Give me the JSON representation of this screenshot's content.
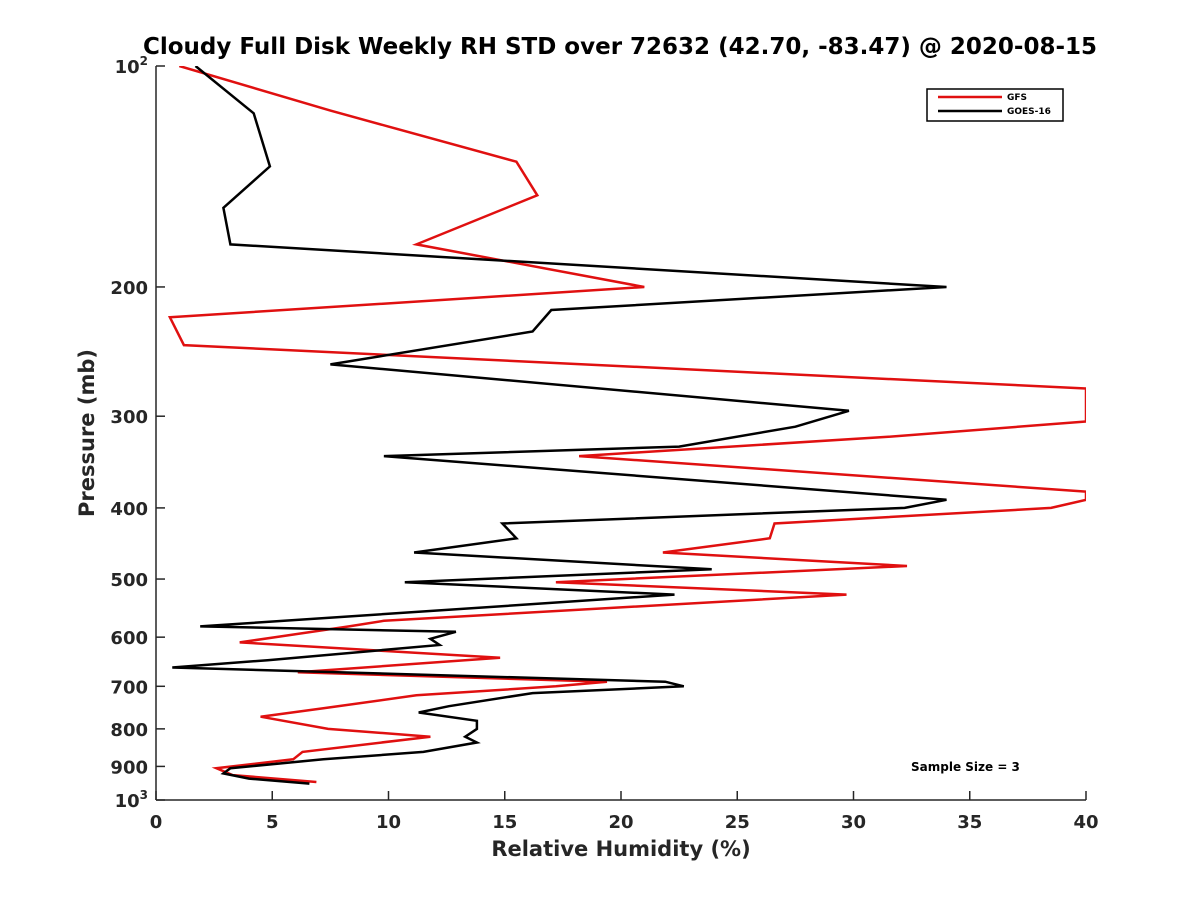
{
  "chart_data": {
    "type": "line",
    "title": "Cloudy Full Disk Weekly RH STD over 72632 (42.70, -83.47) @ 2020-08-15",
    "xlabel": "Relative Humidity (%)",
    "ylabel": "Pressure (mb)",
    "xlim": [
      0,
      40
    ],
    "ylim": [
      100,
      1000
    ],
    "y_scale": "log",
    "y_reversed": true,
    "grid": false,
    "legend_position": "top-right",
    "xticks": [
      0,
      5,
      10,
      15,
      20,
      25,
      30,
      35,
      40
    ],
    "yticks": [
      {
        "value": 100,
        "label": "10",
        "sup": "2"
      },
      {
        "value": 200,
        "label": "200",
        "sup": ""
      },
      {
        "value": 300,
        "label": "300",
        "sup": ""
      },
      {
        "value": 400,
        "label": "400",
        "sup": ""
      },
      {
        "value": 500,
        "label": "500",
        "sup": ""
      },
      {
        "value": 600,
        "label": "600",
        "sup": ""
      },
      {
        "value": 700,
        "label": "700",
        "sup": ""
      },
      {
        "value": 800,
        "label": "800",
        "sup": ""
      },
      {
        "value": 900,
        "label": "900",
        "sup": ""
      },
      {
        "value": 1000,
        "label": "10",
        "sup": "3"
      }
    ],
    "series": [
      {
        "name": "GFS",
        "color": "#e01010",
        "points": [
          [
            1.0,
            100
          ],
          [
            7.5,
            115
          ],
          [
            15.5,
            135
          ],
          [
            16.4,
            150
          ],
          [
            11.2,
            175
          ],
          [
            21.0,
            200
          ],
          [
            0.6,
            220
          ],
          [
            1.2,
            240
          ],
          [
            40.0,
            275
          ],
          [
            40.0,
            305
          ],
          [
            31.5,
            320
          ],
          [
            18.2,
            340
          ],
          [
            40.0,
            380
          ],
          [
            40.0,
            390
          ],
          [
            38.5,
            400
          ],
          [
            26.6,
            420
          ],
          [
            26.4,
            440
          ],
          [
            21.8,
            460
          ],
          [
            32.3,
            480
          ],
          [
            17.2,
            505
          ],
          [
            29.7,
            525
          ],
          [
            9.8,
            570
          ],
          [
            8.3,
            580
          ],
          [
            3.6,
            610
          ],
          [
            14.8,
            640
          ],
          [
            6.1,
            670
          ],
          [
            19.4,
            690
          ],
          [
            17.2,
            700
          ],
          [
            11.2,
            720
          ],
          [
            7.2,
            750
          ],
          [
            4.5,
            770
          ],
          [
            7.4,
            800
          ],
          [
            11.8,
            820
          ],
          [
            6.3,
            860
          ],
          [
            5.9,
            880
          ],
          [
            2.6,
            905
          ],
          [
            3.3,
            925
          ],
          [
            6.9,
            945
          ]
        ]
      },
      {
        "name": "GOES-16",
        "color": "#000000",
        "points": [
          [
            1.7,
            100
          ],
          [
            4.2,
            116
          ],
          [
            4.9,
            137
          ],
          [
            2.9,
            156
          ],
          [
            3.2,
            175
          ],
          [
            34.0,
            200
          ],
          [
            17.0,
            215
          ],
          [
            16.2,
            230
          ],
          [
            7.5,
            255
          ],
          [
            29.8,
            295
          ],
          [
            27.5,
            310
          ],
          [
            22.5,
            330
          ],
          [
            9.8,
            340
          ],
          [
            34.0,
            390
          ],
          [
            32.2,
            400
          ],
          [
            14.9,
            420
          ],
          [
            15.5,
            440
          ],
          [
            11.1,
            460
          ],
          [
            23.9,
            485
          ],
          [
            10.7,
            505
          ],
          [
            22.3,
            525
          ],
          [
            1.9,
            580
          ],
          [
            12.9,
            590
          ],
          [
            11.8,
            603
          ],
          [
            12.2,
            615
          ],
          [
            4.8,
            645
          ],
          [
            0.7,
            660
          ],
          [
            21.9,
            690
          ],
          [
            22.7,
            700
          ],
          [
            16.2,
            715
          ],
          [
            12.6,
            745
          ],
          [
            11.3,
            760
          ],
          [
            13.8,
            780
          ],
          [
            13.8,
            800
          ],
          [
            13.3,
            820
          ],
          [
            13.8,
            835
          ],
          [
            11.5,
            860
          ],
          [
            7.2,
            880
          ],
          [
            3.2,
            905
          ],
          [
            2.9,
            920
          ],
          [
            4.0,
            935
          ],
          [
            6.6,
            950
          ]
        ]
      }
    ],
    "annotation": "Sample Size = 3"
  }
}
